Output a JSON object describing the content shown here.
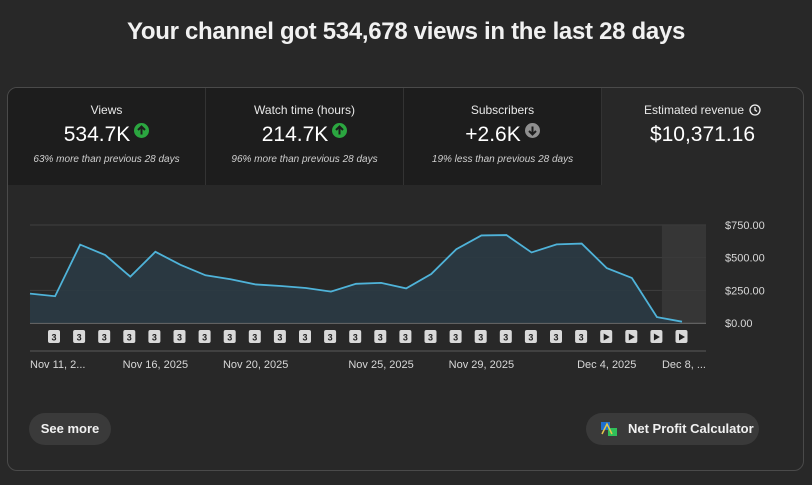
{
  "headline": "Your channel got 534,678 views in the last 28 days",
  "stats": [
    {
      "label": "Views",
      "value": "534.7K",
      "trend": "up",
      "sub": "63% more than previous 28 days"
    },
    {
      "label": "Watch time (hours)",
      "value": "214.7K",
      "trend": "up",
      "sub": "96% more than previous 28 days"
    },
    {
      "label": "Subscribers",
      "value": "+2.6K",
      "trend": "down",
      "sub": "19% less than previous 28 days"
    },
    {
      "label": "Estimated revenue",
      "value": "$10,371.16",
      "icon": "clock-icon"
    }
  ],
  "chart_data": {
    "type": "area",
    "y_tick_labels": [
      "$750.00",
      "$500.00",
      "$250.00",
      "$0.00"
    ],
    "y_ticks": [
      750,
      500,
      250,
      0
    ],
    "ylim": [
      0,
      750
    ],
    "x_tick_labels": [
      "Nov 11, 2...",
      "Nov 16, 2025",
      "Nov 20, 2025",
      "Nov 25, 2025",
      "Nov 29, 2025",
      "Dec 4, 2025",
      "Dec 8, ..."
    ],
    "x_tick_positions": [
      1,
      5,
      9,
      14,
      18,
      23,
      27
    ],
    "series": [
      {
        "values": [
          225,
          205,
          600,
          520,
          355,
          545,
          445,
          365,
          335,
          295,
          283,
          268,
          240,
          300,
          307,
          265,
          375,
          565,
          670,
          673,
          540,
          602,
          608,
          420,
          345,
          45,
          10
        ]
      }
    ],
    "markers": [
      "3",
      "3",
      "3",
      "3",
      "3",
      "3",
      "3",
      "3",
      "3",
      "3",
      "3",
      "3",
      "3",
      "3",
      "3",
      "3",
      "3",
      "3",
      "3",
      "3",
      "3",
      "3",
      "play",
      "play",
      "play",
      "play"
    ],
    "colors": {
      "line": "#4fb3d9",
      "fill": "#2a3a44",
      "grid": "#3f3f3f"
    }
  },
  "buttons": {
    "see_more": "See more",
    "net_profit": "Net Profit Calculator"
  }
}
